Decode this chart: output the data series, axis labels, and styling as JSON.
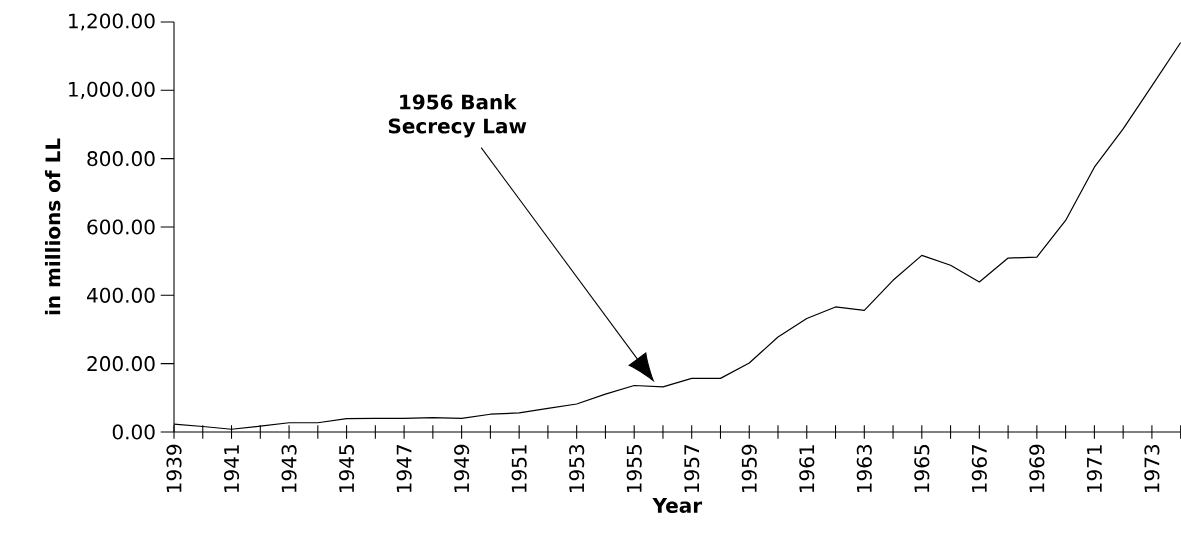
{
  "chart_data": {
    "type": "line",
    "xlabel": "Year",
    "ylabel": "in millions of LL",
    "x": [
      1939,
      1940,
      1941,
      1942,
      1943,
      1944,
      1945,
      1946,
      1947,
      1948,
      1949,
      1950,
      1951,
      1952,
      1953,
      1954,
      1955,
      1956,
      1957,
      1958,
      1959,
      1960,
      1961,
      1962,
      1963,
      1964,
      1965,
      1966,
      1967,
      1968,
      1969,
      1970,
      1971,
      1972,
      1973,
      1974
    ],
    "series": [
      {
        "color": "#000000",
        "values": [
          23,
          16,
          8,
          17,
          27,
          27,
          39,
          40,
          40,
          42,
          40,
          52,
          56,
          69,
          82,
          111,
          136,
          132,
          157,
          157,
          202,
          278,
          332,
          366,
          356,
          444,
          517,
          488,
          439,
          509,
          512,
          619,
          775,
          887,
          1013,
          1140
        ]
      }
    ],
    "xlim": [
      1939,
      1974
    ],
    "xticks": [
      1939,
      {
        "value": 1940,
        "label": null
      },
      1941,
      {
        "value": 1942,
        "label": null
      },
      1943,
      {
        "value": 1944,
        "label": null
      },
      1945,
      {
        "value": 1946,
        "label": null
      },
      1947,
      {
        "value": 1948,
        "label": null
      },
      1949,
      {
        "value": 1950,
        "label": null
      },
      1951,
      {
        "value": 1952,
        "label": null
      },
      1953,
      {
        "value": 1954,
        "label": null
      },
      1955,
      {
        "value": 1956,
        "label": null
      },
      1957,
      {
        "value": 1958,
        "label": null
      },
      1959,
      {
        "value": 1960,
        "label": null
      },
      1961,
      {
        "value": 1962,
        "label": null
      },
      1963,
      {
        "value": 1964,
        "label": null
      },
      1965,
      {
        "value": 1966,
        "label": null
      },
      1967,
      {
        "value": 1968,
        "label": null
      },
      1969,
      {
        "value": 1970,
        "label": null
      },
      1971,
      {
        "value": 1972,
        "label": null
      },
      1973,
      {
        "value": 1974,
        "label": null
      }
    ],
    "ylim": [
      0,
      1200
    ],
    "yticks": [
      {
        "value": 0,
        "label": "0.00"
      },
      {
        "value": 200,
        "label": "200.00"
      },
      {
        "value": 400,
        "label": "400.00"
      },
      {
        "value": 600,
        "label": "600.00"
      },
      {
        "value": 800,
        "label": "800.00"
      },
      {
        "value": 1000,
        "label": "1,000.00"
      },
      {
        "value": 1200,
        "label": "1,200.00"
      }
    ],
    "annotations": [
      "1956 Bank Secrecy Law"
    ],
    "grid": false,
    "marker": "none",
    "line_style": "solid"
  }
}
